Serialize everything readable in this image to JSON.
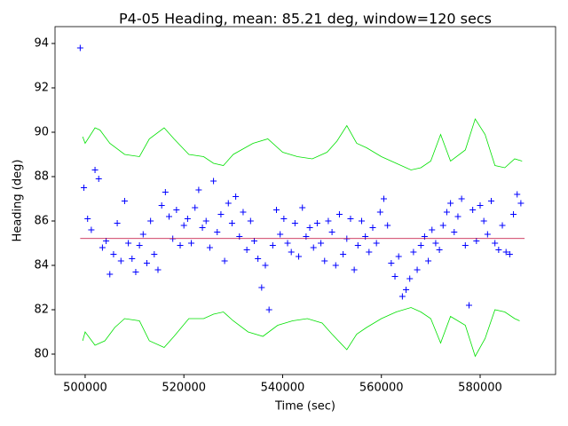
{
  "chart_data": {
    "type": "scatter",
    "title": "P4-05 Heading, mean: 85.21 deg, window=120 secs",
    "xlabel": "Time (sec)",
    "ylabel": "Heading (deg)",
    "xlim": [
      493900,
      595280
    ],
    "ylim": [
      79.08,
      94.76
    ],
    "xticks": [
      500000,
      520000,
      540000,
      560000,
      580000
    ],
    "yticks": [
      80,
      82,
      84,
      86,
      88,
      90,
      92,
      94
    ],
    "series": [
      {
        "type": "scatter",
        "color": "#0000ff",
        "x": [
          499000,
          499750,
          500500,
          501250,
          502000,
          502750,
          503500,
          504250,
          505000,
          505750,
          506500,
          507250,
          508000,
          508750,
          509500,
          510250,
          511000,
          511750,
          512500,
          513250,
          514000,
          514750,
          515500,
          516250,
          517000,
          517750,
          518500,
          519250,
          520000,
          520750,
          521500,
          522250,
          523000,
          523750,
          524500,
          525250,
          526000,
          526750,
          527500,
          528250,
          529000,
          529750,
          530500,
          531250,
          532000,
          532750,
          533500,
          534250,
          535000,
          535750,
          536500,
          537250,
          538000,
          538750,
          539500,
          540250,
          541000,
          541750,
          542500,
          543250,
          544000,
          544750,
          545500,
          546250,
          547000,
          547750,
          548500,
          549250,
          550000,
          550750,
          551500,
          552250,
          553000,
          553750,
          554500,
          555250,
          556000,
          556750,
          557500,
          558250,
          559000,
          559750,
          560500,
          561250,
          562000,
          562750,
          563500,
          564250,
          565000,
          565750,
          566500,
          567250,
          568000,
          568750,
          569500,
          570250,
          571000,
          571750,
          572500,
          573250,
          574000,
          574750,
          575500,
          576250,
          577000,
          577750,
          578500,
          579250,
          580000,
          580750,
          581500,
          582250,
          583000,
          583750,
          584500,
          585250,
          586000,
          586750,
          587500,
          588250
        ],
        "values": [
          93.8,
          87.5,
          86.1,
          85.6,
          88.3,
          87.9,
          84.8,
          85.1,
          83.6,
          84.5,
          85.9,
          84.2,
          86.9,
          85.0,
          84.3,
          83.7,
          84.9,
          85.4,
          84.1,
          86.0,
          84.5,
          83.8,
          86.7,
          87.3,
          86.2,
          85.2,
          86.5,
          84.9,
          85.8,
          86.1,
          85.0,
          86.6,
          87.4,
          85.7,
          86.0,
          84.8,
          87.8,
          85.5,
          86.3,
          84.2,
          86.8,
          85.9,
          87.1,
          85.3,
          86.4,
          84.7,
          86.0,
          85.1,
          84.3,
          83.0,
          84.0,
          82.0,
          84.9,
          86.5,
          85.4,
          86.1,
          85.0,
          84.6,
          85.9,
          84.4,
          86.6,
          85.3,
          85.7,
          84.8,
          85.9,
          85.0,
          84.2,
          86.0,
          85.5,
          84.0,
          86.3,
          84.5,
          85.2,
          86.1,
          83.8,
          84.9,
          86.0,
          85.3,
          84.6,
          85.7,
          85.0,
          86.4,
          87.0,
          85.8,
          84.1,
          83.5,
          84.4,
          82.6,
          82.9,
          83.4,
          84.6,
          83.8,
          84.9,
          85.3,
          84.2,
          85.6,
          85.0,
          84.7,
          85.8,
          86.4,
          86.8,
          85.5,
          86.2,
          87.0,
          84.9,
          82.2,
          86.5,
          85.1,
          86.7,
          86.0,
          85.4,
          86.9,
          85.0,
          84.7,
          85.8,
          84.6,
          84.5,
          86.3,
          87.2,
          86.8
        ]
      },
      {
        "type": "line",
        "color": "#c00030",
        "x": [
          499000,
          589000
        ],
        "values": [
          85.21,
          85.21
        ]
      },
      {
        "type": "line",
        "color": "#00e000",
        "x": [
          499500,
          500000,
          502000,
          503000,
          505000,
          508000,
          511000,
          513000,
          516000,
          518000,
          521000,
          524000,
          526000,
          528000,
          530000,
          534000,
          537000,
          540000,
          543000,
          546000,
          549000,
          551000,
          553000,
          555000,
          557000,
          560000,
          563000,
          566000,
          568000,
          570000,
          572000,
          574000,
          577000,
          579000,
          581000,
          583000,
          585000,
          587000,
          588500
        ],
        "values": [
          89.8,
          89.5,
          90.2,
          90.1,
          89.5,
          89.0,
          88.9,
          89.7,
          90.2,
          89.7,
          89.0,
          88.9,
          88.6,
          88.5,
          89.0,
          89.5,
          89.7,
          89.1,
          88.9,
          88.8,
          89.1,
          89.6,
          90.3,
          89.5,
          89.3,
          88.9,
          88.6,
          88.3,
          88.4,
          88.7,
          89.9,
          88.7,
          89.2,
          90.6,
          89.9,
          88.5,
          88.4,
          88.8,
          88.7
        ]
      },
      {
        "type": "line",
        "color": "#00e000",
        "x": [
          499500,
          500000,
          502000,
          504000,
          506000,
          508000,
          511000,
          513000,
          516000,
          518000,
          521000,
          524000,
          526000,
          528000,
          530000,
          533000,
          536000,
          539000,
          542000,
          545000,
          548000,
          550000,
          553000,
          555000,
          557000,
          560000,
          563000,
          566000,
          568000,
          570000,
          572000,
          574000,
          577000,
          579000,
          581000,
          583000,
          585000,
          587000,
          588000
        ],
        "values": [
          80.6,
          81.0,
          80.4,
          80.6,
          81.2,
          81.6,
          81.5,
          80.6,
          80.3,
          80.8,
          81.6,
          81.6,
          81.8,
          81.9,
          81.5,
          81.0,
          80.8,
          81.3,
          81.5,
          81.6,
          81.4,
          80.9,
          80.2,
          80.9,
          81.2,
          81.6,
          81.9,
          82.1,
          81.9,
          81.6,
          80.5,
          81.7,
          81.3,
          79.9,
          80.7,
          82.0,
          81.9,
          81.6,
          81.5
        ]
      }
    ]
  }
}
